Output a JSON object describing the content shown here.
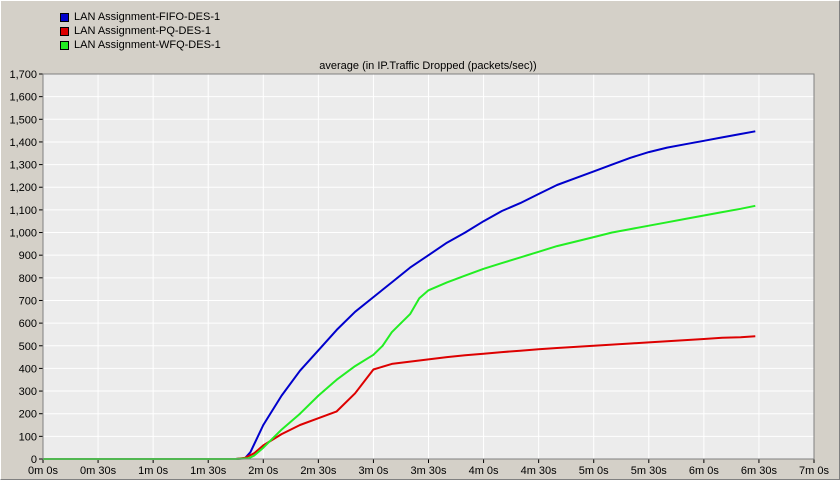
{
  "legend": {
    "items": [
      {
        "label": "LAN Assignment-FIFO-DES-1",
        "color": "#0000cc"
      },
      {
        "label": "LAN Assignment-PQ-DES-1",
        "color": "#dd0000"
      },
      {
        "label": "LAN Assignment-WFQ-DES-1",
        "color": "#22ee22"
      }
    ]
  },
  "chart_data": {
    "type": "line",
    "title": "average (in IP.Traffic Dropped (packets/sec))",
    "xlabel": "",
    "ylabel": "",
    "x_unit": "seconds",
    "xlim": [
      0,
      420
    ],
    "ylim": [
      0,
      1700
    ],
    "grid": true,
    "legend_position": "top-left",
    "x_ticks": [
      {
        "value": 0,
        "label": "0m 0s"
      },
      {
        "value": 30,
        "label": "0m 30s"
      },
      {
        "value": 60,
        "label": "1m 0s"
      },
      {
        "value": 90,
        "label": "1m 30s"
      },
      {
        "value": 120,
        "label": "2m 0s"
      },
      {
        "value": 150,
        "label": "2m 30s"
      },
      {
        "value": 180,
        "label": "3m 0s"
      },
      {
        "value": 210,
        "label": "3m 30s"
      },
      {
        "value": 240,
        "label": "4m 0s"
      },
      {
        "value": 270,
        "label": "4m 30s"
      },
      {
        "value": 300,
        "label": "5m 0s"
      },
      {
        "value": 330,
        "label": "5m 30s"
      },
      {
        "value": 360,
        "label": "6m 0s"
      },
      {
        "value": 390,
        "label": "6m 30s"
      },
      {
        "value": 420,
        "label": "7m 0s"
      }
    ],
    "y_ticks": [
      {
        "value": 0,
        "label": "0"
      },
      {
        "value": 100,
        "label": "100"
      },
      {
        "value": 200,
        "label": "200"
      },
      {
        "value": 300,
        "label": "300"
      },
      {
        "value": 400,
        "label": "400"
      },
      {
        "value": 500,
        "label": "500"
      },
      {
        "value": 600,
        "label": "600"
      },
      {
        "value": 700,
        "label": "700"
      },
      {
        "value": 800,
        "label": "800"
      },
      {
        "value": 900,
        "label": "900"
      },
      {
        "value": 1000,
        "label": "1,000"
      },
      {
        "value": 1100,
        "label": "1,100"
      },
      {
        "value": 1200,
        "label": "1,200"
      },
      {
        "value": 1300,
        "label": "1,300"
      },
      {
        "value": 1400,
        "label": "1,400"
      },
      {
        "value": 1500,
        "label": "1,500"
      },
      {
        "value": 1600,
        "label": "1,600"
      },
      {
        "value": 1700,
        "label": "1,700"
      }
    ],
    "series": [
      {
        "name": "LAN Assignment-FIFO-DES-1",
        "color": "#0000cc",
        "points": [
          [
            0,
            0
          ],
          [
            30,
            0
          ],
          [
            60,
            0
          ],
          [
            90,
            0
          ],
          [
            105,
            0
          ],
          [
            110,
            3
          ],
          [
            113,
            30
          ],
          [
            120,
            150
          ],
          [
            130,
            280
          ],
          [
            140,
            390
          ],
          [
            150,
            480
          ],
          [
            160,
            570
          ],
          [
            170,
            650
          ],
          [
            180,
            715
          ],
          [
            190,
            780
          ],
          [
            200,
            845
          ],
          [
            210,
            900
          ],
          [
            220,
            955
          ],
          [
            230,
            1000
          ],
          [
            240,
            1050
          ],
          [
            250,
            1095
          ],
          [
            260,
            1130
          ],
          [
            270,
            1170
          ],
          [
            280,
            1210
          ],
          [
            290,
            1240
          ],
          [
            300,
            1270
          ],
          [
            310,
            1300
          ],
          [
            320,
            1330
          ],
          [
            330,
            1355
          ],
          [
            340,
            1375
          ],
          [
            350,
            1390
          ],
          [
            360,
            1405
          ],
          [
            370,
            1420
          ],
          [
            380,
            1435
          ],
          [
            388,
            1447
          ]
        ]
      },
      {
        "name": "LAN Assignment-PQ-DES-1",
        "color": "#dd0000",
        "points": [
          [
            0,
            0
          ],
          [
            30,
            0
          ],
          [
            60,
            0
          ],
          [
            90,
            0
          ],
          [
            105,
            0
          ],
          [
            110,
            5
          ],
          [
            115,
            25
          ],
          [
            120,
            60
          ],
          [
            130,
            110
          ],
          [
            140,
            150
          ],
          [
            150,
            180
          ],
          [
            160,
            210
          ],
          [
            170,
            290
          ],
          [
            180,
            395
          ],
          [
            190,
            420
          ],
          [
            200,
            430
          ],
          [
            210,
            440
          ],
          [
            220,
            450
          ],
          [
            230,
            458
          ],
          [
            240,
            465
          ],
          [
            250,
            472
          ],
          [
            260,
            478
          ],
          [
            270,
            485
          ],
          [
            280,
            490
          ],
          [
            290,
            495
          ],
          [
            300,
            500
          ],
          [
            310,
            505
          ],
          [
            320,
            510
          ],
          [
            330,
            515
          ],
          [
            340,
            520
          ],
          [
            350,
            525
          ],
          [
            360,
            530
          ],
          [
            370,
            535
          ],
          [
            380,
            538
          ],
          [
            388,
            542
          ]
        ]
      },
      {
        "name": "LAN Assignment-WFQ-DES-1",
        "color": "#22ee22",
        "points": [
          [
            0,
            0
          ],
          [
            30,
            0
          ],
          [
            60,
            0
          ],
          [
            90,
            0
          ],
          [
            105,
            0
          ],
          [
            112,
            3
          ],
          [
            115,
            15
          ],
          [
            120,
            50
          ],
          [
            130,
            130
          ],
          [
            140,
            200
          ],
          [
            150,
            280
          ],
          [
            160,
            350
          ],
          [
            170,
            410
          ],
          [
            180,
            460
          ],
          [
            185,
            500
          ],
          [
            190,
            560
          ],
          [
            200,
            640
          ],
          [
            205,
            710
          ],
          [
            210,
            745
          ],
          [
            220,
            780
          ],
          [
            230,
            810
          ],
          [
            240,
            840
          ],
          [
            250,
            865
          ],
          [
            260,
            890
          ],
          [
            270,
            915
          ],
          [
            280,
            940
          ],
          [
            290,
            960
          ],
          [
            300,
            980
          ],
          [
            310,
            1000
          ],
          [
            320,
            1015
          ],
          [
            330,
            1030
          ],
          [
            340,
            1045
          ],
          [
            350,
            1060
          ],
          [
            360,
            1075
          ],
          [
            370,
            1090
          ],
          [
            380,
            1105
          ],
          [
            388,
            1118
          ]
        ]
      }
    ]
  }
}
